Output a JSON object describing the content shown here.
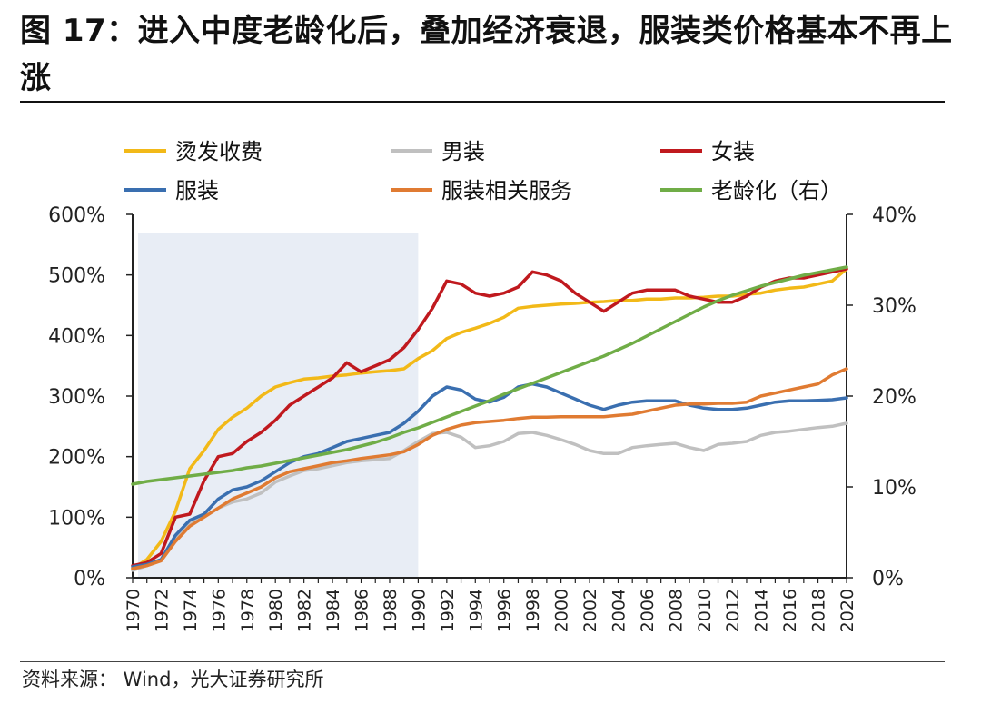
{
  "title": "图 17：进入中度老龄化后，叠加经济衰退，服装类价格基本不再上涨",
  "source": "资料来源：  Wind，光大证券研究所",
  "chart_data": {
    "type": "line",
    "title": "图 17：进入中度老龄化后，叠加经济衰退，服装类价格基本不再上涨",
    "x": [
      1970,
      1971,
      1972,
      1973,
      1974,
      1975,
      1976,
      1977,
      1978,
      1979,
      1980,
      1981,
      1982,
      1983,
      1984,
      1985,
      1986,
      1987,
      1988,
      1989,
      1990,
      1991,
      1992,
      1993,
      1994,
      1995,
      1996,
      1997,
      1998,
      1999,
      2000,
      2001,
      2002,
      2003,
      2004,
      2005,
      2006,
      2007,
      2008,
      2009,
      2010,
      2011,
      2012,
      2013,
      2014,
      2015,
      2016,
      2017,
      2018,
      2019,
      2020
    ],
    "x_tick_labels": [
      "1970",
      "1972",
      "1974",
      "1976",
      "1978",
      "1980",
      "1982",
      "1984",
      "1986",
      "1988",
      "1990",
      "1992",
      "1994",
      "1996",
      "1998",
      "2000",
      "2002",
      "2004",
      "2006",
      "2008",
      "2010",
      "2012",
      "2014",
      "2016",
      "2018",
      "2020"
    ],
    "y_left": {
      "ticks": [
        0,
        100,
        200,
        300,
        400,
        500,
        600
      ],
      "labels": [
        "0%",
        "100%",
        "200%",
        "300%",
        "400%",
        "500%",
        "600%"
      ],
      "ylim": [
        0,
        600
      ]
    },
    "y_right": {
      "ticks": [
        0,
        10,
        20,
        30,
        40
      ],
      "labels": [
        "0%",
        "10%",
        "20%",
        "30%",
        "40%"
      ],
      "ylim": [
        0,
        40
      ]
    },
    "shaded_region": {
      "x_start": 1970,
      "x_end": 1990,
      "color": "#E8EDF5"
    },
    "legend_position": "top",
    "series": [
      {
        "name": "烫发收费",
        "color": "#F2B918",
        "axis": "left",
        "values": [
          15,
          30,
          60,
          110,
          180,
          210,
          245,
          265,
          280,
          300,
          315,
          322,
          328,
          330,
          333,
          335,
          338,
          340,
          342,
          345,
          362,
          375,
          395,
          405,
          412,
          420,
          430,
          445,
          448,
          450,
          452,
          453,
          455,
          456,
          458,
          458,
          460,
          460,
          462,
          462,
          463,
          465,
          465,
          468,
          470,
          475,
          478,
          480,
          485,
          490,
          510
        ]
      },
      {
        "name": "男装",
        "color": "#C0C0C0",
        "axis": "left",
        "values": [
          12,
          20,
          30,
          65,
          90,
          100,
          115,
          125,
          130,
          140,
          158,
          168,
          177,
          180,
          185,
          190,
          193,
          195,
          197,
          210,
          225,
          238,
          240,
          232,
          215,
          218,
          225,
          238,
          240,
          235,
          228,
          220,
          210,
          205,
          205,
          215,
          218,
          220,
          222,
          215,
          210,
          220,
          222,
          225,
          235,
          240,
          242,
          245,
          248,
          250,
          255
        ]
      },
      {
        "name": "女装",
        "color": "#C0191E",
        "axis": "left",
        "values": [
          20,
          25,
          40,
          100,
          105,
          160,
          200,
          205,
          225,
          240,
          260,
          285,
          300,
          315,
          330,
          355,
          340,
          350,
          360,
          380,
          410,
          445,
          490,
          485,
          470,
          465,
          470,
          480,
          505,
          500,
          490,
          470,
          455,
          440,
          455,
          470,
          475,
          475,
          475,
          465,
          460,
          455,
          455,
          465,
          480,
          490,
          495,
          495,
          500,
          505,
          510
        ]
      },
      {
        "name": "服装",
        "color": "#3A6FB0",
        "axis": "left",
        "values": [
          18,
          22,
          30,
          70,
          95,
          105,
          130,
          145,
          150,
          160,
          175,
          190,
          200,
          205,
          215,
          225,
          230,
          235,
          240,
          255,
          275,
          300,
          315,
          310,
          295,
          290,
          298,
          315,
          320,
          315,
          305,
          295,
          285,
          278,
          285,
          290,
          292,
          292,
          292,
          285,
          280,
          278,
          278,
          280,
          285,
          290,
          292,
          292,
          293,
          294,
          297
        ]
      },
      {
        "name": "服装相关服务",
        "color": "#E07B32",
        "axis": "left",
        "values": [
          15,
          20,
          28,
          60,
          85,
          100,
          115,
          130,
          140,
          150,
          165,
          175,
          180,
          185,
          190,
          193,
          197,
          200,
          203,
          208,
          220,
          235,
          245,
          252,
          256,
          258,
          260,
          263,
          265,
          265,
          266,
          266,
          266,
          266,
          268,
          270,
          275,
          280,
          285,
          287,
          287,
          288,
          288,
          290,
          300,
          305,
          310,
          315,
          320,
          335,
          345
        ]
      },
      {
        "name": "老龄化（右）",
        "color": "#70AD47",
        "axis": "right",
        "values": [
          10.3,
          10.6,
          10.8,
          11.0,
          11.2,
          11.4,
          11.6,
          11.8,
          12.1,
          12.3,
          12.6,
          12.9,
          13.2,
          13.5,
          13.8,
          14.1,
          14.5,
          14.9,
          15.4,
          16.0,
          16.5,
          17.1,
          17.7,
          18.3,
          18.9,
          19.5,
          20.2,
          20.8,
          21.4,
          22.0,
          22.6,
          23.2,
          23.8,
          24.4,
          25.1,
          25.8,
          26.6,
          27.4,
          28.2,
          29.0,
          29.8,
          30.5,
          31.1,
          31.6,
          32.1,
          32.5,
          32.9,
          33.3,
          33.6,
          33.9,
          34.2
        ]
      }
    ]
  }
}
